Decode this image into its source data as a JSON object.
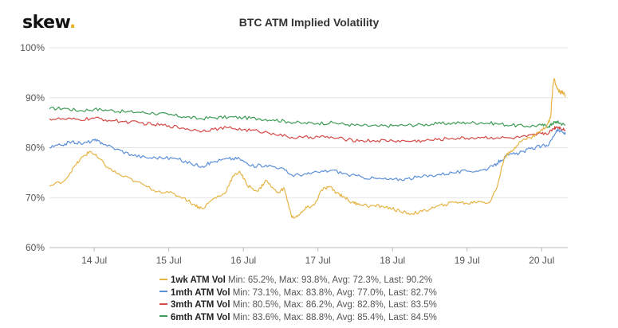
{
  "brand": {
    "name": "skew",
    "dot": "."
  },
  "chart_data": {
    "type": "line",
    "title": "BTC ATM Implied Volatility",
    "xlabel": "",
    "ylabel": "",
    "x_ticks": [
      "14 Jul",
      "15 Jul",
      "16 Jul",
      "17 Jul",
      "18 Jul",
      "19 Jul",
      "20 Jul"
    ],
    "x_range_days": [
      13.4,
      20.35
    ],
    "y_ticks": [
      "60%",
      "70%",
      "80%",
      "90%",
      "100%"
    ],
    "ylim": [
      60,
      100
    ],
    "grid": "horizontal",
    "legend_position": "bottom",
    "series": [
      {
        "name": "1wk ATM Vol",
        "stats": "Min: 65.2%, Max: 93.8%, Avg: 72.3%, Last: 90.2%",
        "color": "#e6b445",
        "points": [
          [
            13.4,
            72.3
          ],
          [
            13.6,
            73.4
          ],
          [
            13.75,
            76.5
          ],
          [
            13.85,
            78.2
          ],
          [
            13.95,
            79.3
          ],
          [
            14.05,
            78.0
          ],
          [
            14.2,
            75.8
          ],
          [
            14.35,
            74.5
          ],
          [
            14.55,
            73.3
          ],
          [
            14.8,
            71.5
          ],
          [
            15.0,
            71.0
          ],
          [
            15.2,
            70.0
          ],
          [
            15.35,
            68.5
          ],
          [
            15.45,
            67.8
          ],
          [
            15.6,
            69.8
          ],
          [
            15.75,
            70.8
          ],
          [
            15.85,
            74.0
          ],
          [
            15.95,
            75.3
          ],
          [
            16.05,
            72.5
          ],
          [
            16.2,
            71.3
          ],
          [
            16.3,
            73.5
          ],
          [
            16.45,
            71.0
          ],
          [
            16.55,
            71.8
          ],
          [
            16.65,
            66.0
          ],
          [
            16.75,
            66.5
          ],
          [
            16.85,
            68.0
          ],
          [
            16.95,
            68.5
          ],
          [
            17.05,
            71.5
          ],
          [
            17.15,
            72.2
          ],
          [
            17.25,
            71.0
          ],
          [
            17.35,
            70.2
          ],
          [
            17.45,
            69.0
          ],
          [
            17.55,
            68.8
          ],
          [
            17.7,
            68.3
          ],
          [
            17.85,
            68.3
          ],
          [
            18.0,
            67.8
          ],
          [
            18.1,
            67.2
          ],
          [
            18.25,
            66.8
          ],
          [
            18.4,
            67.2
          ],
          [
            18.55,
            68.0
          ],
          [
            18.7,
            68.6
          ],
          [
            18.85,
            69.2
          ],
          [
            19.0,
            68.8
          ],
          [
            19.15,
            69.3
          ],
          [
            19.3,
            69.0
          ],
          [
            19.4,
            72.0
          ],
          [
            19.5,
            78.2
          ],
          [
            19.6,
            79.2
          ],
          [
            19.7,
            81.2
          ],
          [
            19.85,
            82.0
          ],
          [
            19.95,
            83.0
          ],
          [
            20.05,
            84.0
          ],
          [
            20.12,
            86.0
          ],
          [
            20.15,
            92.5
          ],
          [
            20.17,
            93.8
          ],
          [
            20.2,
            92.0
          ],
          [
            20.25,
            91.0
          ],
          [
            20.28,
            91.3
          ],
          [
            20.32,
            90.2
          ]
        ]
      },
      {
        "name": "1mth ATM Vol",
        "stats": "Min: 73.1%, Max: 83.8%, Avg: 77.0%, Last: 82.7%",
        "color": "#5b8fd9",
        "points": [
          [
            13.4,
            80.0
          ],
          [
            13.55,
            80.5
          ],
          [
            13.7,
            81.2
          ],
          [
            13.85,
            80.8
          ],
          [
            14.0,
            81.5
          ],
          [
            14.1,
            81.0
          ],
          [
            14.3,
            79.7
          ],
          [
            14.5,
            78.6
          ],
          [
            14.7,
            78.0
          ],
          [
            14.9,
            78.0
          ],
          [
            15.1,
            77.8
          ],
          [
            15.3,
            76.8
          ],
          [
            15.45,
            76.3
          ],
          [
            15.6,
            77.2
          ],
          [
            15.8,
            77.8
          ],
          [
            15.95,
            77.8
          ],
          [
            16.1,
            76.3
          ],
          [
            16.3,
            76.5
          ],
          [
            16.5,
            76.0
          ],
          [
            16.65,
            74.5
          ],
          [
            16.85,
            74.7
          ],
          [
            17.0,
            75.1
          ],
          [
            17.2,
            75.5
          ],
          [
            17.4,
            74.6
          ],
          [
            17.6,
            74.1
          ],
          [
            17.8,
            73.8
          ],
          [
            18.0,
            73.6
          ],
          [
            18.2,
            73.8
          ],
          [
            18.4,
            74.2
          ],
          [
            18.6,
            74.6
          ],
          [
            18.8,
            75.0
          ],
          [
            19.0,
            75.3
          ],
          [
            19.2,
            75.5
          ],
          [
            19.35,
            76.2
          ],
          [
            19.45,
            77.5
          ],
          [
            19.55,
            78.5
          ],
          [
            19.7,
            78.9
          ],
          [
            19.85,
            79.8
          ],
          [
            20.0,
            80.3
          ],
          [
            20.1,
            80.7
          ],
          [
            20.2,
            83.5
          ],
          [
            20.25,
            83.3
          ],
          [
            20.32,
            82.7
          ]
        ]
      },
      {
        "name": "3mth ATM Vol",
        "stats": "Min: 80.5%, Max: 86.2%, Avg: 82.8%, Last: 83.5%",
        "color": "#d44a46",
        "points": [
          [
            13.4,
            85.8
          ],
          [
            13.6,
            85.7
          ],
          [
            13.8,
            85.6
          ],
          [
            14.0,
            85.9
          ],
          [
            14.2,
            85.5
          ],
          [
            14.4,
            85.2
          ],
          [
            14.6,
            85.0
          ],
          [
            14.8,
            84.6
          ],
          [
            15.0,
            84.4
          ],
          [
            15.2,
            83.9
          ],
          [
            15.4,
            83.4
          ],
          [
            15.6,
            83.7
          ],
          [
            15.8,
            84.0
          ],
          [
            16.0,
            83.6
          ],
          [
            16.2,
            83.3
          ],
          [
            16.4,
            82.9
          ],
          [
            16.6,
            82.1
          ],
          [
            16.8,
            82.0
          ],
          [
            17.0,
            82.2
          ],
          [
            17.2,
            82.0
          ],
          [
            17.4,
            81.6
          ],
          [
            17.6,
            81.4
          ],
          [
            17.8,
            81.4
          ],
          [
            18.0,
            81.4
          ],
          [
            18.2,
            81.3
          ],
          [
            18.4,
            81.4
          ],
          [
            18.6,
            81.6
          ],
          [
            18.8,
            81.9
          ],
          [
            19.0,
            81.9
          ],
          [
            19.2,
            82.1
          ],
          [
            19.4,
            82.0
          ],
          [
            19.6,
            81.9
          ],
          [
            19.8,
            82.2
          ],
          [
            20.0,
            82.8
          ],
          [
            20.1,
            83.0
          ],
          [
            20.15,
            83.8
          ],
          [
            20.2,
            84.2
          ],
          [
            20.25,
            84.0
          ],
          [
            20.32,
            83.5
          ]
        ]
      },
      {
        "name": "6mth ATM Vol",
        "stats": "Min: 83.6%, Max: 88.8%, Avg: 85.4%, Last: 84.5%",
        "color": "#3f9c57",
        "points": [
          [
            13.4,
            87.8
          ],
          [
            13.6,
            87.9
          ],
          [
            13.8,
            87.4
          ],
          [
            14.0,
            87.7
          ],
          [
            14.2,
            87.5
          ],
          [
            14.4,
            87.2
          ],
          [
            14.6,
            87.1
          ],
          [
            14.8,
            86.9
          ],
          [
            15.0,
            86.6
          ],
          [
            15.2,
            86.2
          ],
          [
            15.4,
            85.8
          ],
          [
            15.6,
            86.0
          ],
          [
            15.8,
            86.1
          ],
          [
            16.0,
            86.0
          ],
          [
            16.2,
            85.8
          ],
          [
            16.4,
            85.6
          ],
          [
            16.6,
            85.2
          ],
          [
            16.8,
            84.9
          ],
          [
            17.0,
            84.9
          ],
          [
            17.2,
            85.0
          ],
          [
            17.4,
            84.6
          ],
          [
            17.6,
            84.4
          ],
          [
            17.8,
            84.3
          ],
          [
            18.0,
            84.4
          ],
          [
            18.2,
            84.5
          ],
          [
            18.4,
            84.6
          ],
          [
            18.6,
            84.8
          ],
          [
            18.8,
            84.9
          ],
          [
            19.0,
            85.0
          ],
          [
            19.2,
            85.0
          ],
          [
            19.4,
            84.8
          ],
          [
            19.6,
            84.5
          ],
          [
            19.8,
            84.3
          ],
          [
            20.0,
            84.5
          ],
          [
            20.1,
            84.3
          ],
          [
            20.15,
            84.9
          ],
          [
            20.2,
            85.2
          ],
          [
            20.25,
            84.9
          ],
          [
            20.32,
            84.5
          ]
        ]
      }
    ]
  }
}
